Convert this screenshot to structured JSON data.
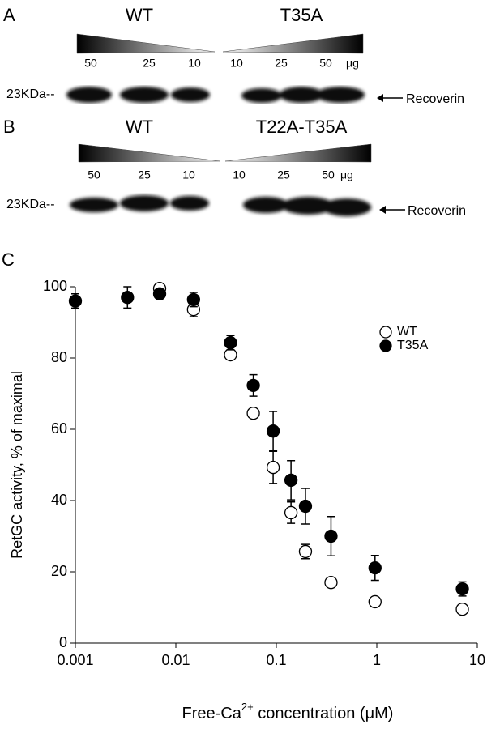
{
  "panel_a": {
    "label": "A",
    "left": "WT",
    "right": "T35A",
    "left_amounts": [
      "50",
      "25",
      "10"
    ],
    "right_amounts": [
      "10",
      "25",
      "50"
    ],
    "unit": "μg",
    "marker": "23KDa--",
    "band": "Recoverin"
  },
  "panel_b": {
    "label": "B",
    "left": "WT",
    "right": "T22A-T35A",
    "left_amounts": [
      "50",
      "25",
      "10"
    ],
    "right_amounts": [
      "10",
      "25",
      "50"
    ],
    "unit": "μg",
    "marker": "23KDa--",
    "band": "Recoverin"
  },
  "chart_data": {
    "type": "scatter",
    "label": "C",
    "xlabel": [
      "Free-Ca",
      "2+",
      " concentration (μM)"
    ],
    "ylabel": "RetGC activity, % of maximal",
    "xscale": "log",
    "xlim": [
      0.001,
      10
    ],
    "xticks": [
      0.001,
      0.01,
      0.1,
      1,
      10
    ],
    "ylim": [
      0,
      100
    ],
    "yticks": [
      0,
      20,
      40,
      60,
      80,
      100
    ],
    "legend": "upper right",
    "series": [
      {
        "name": "WT",
        "color": "#ffffff",
        "x": [
          0.0069,
          0.015,
          0.035,
          0.059,
          0.093,
          0.14,
          0.195,
          0.35,
          0.96,
          7.1
        ],
        "values": [
          99.5,
          93.6,
          80.9,
          64.5,
          49.3,
          36.6,
          25.7,
          17,
          11.6,
          9.5
        ],
        "errors": [
          1,
          2,
          1,
          1,
          4.5,
          3,
          2,
          1,
          1,
          1
        ]
      },
      {
        "name": "T35A",
        "color": "#000000",
        "x": [
          0.001,
          0.0033,
          0.0069,
          0.015,
          0.035,
          0.059,
          0.093,
          0.14,
          0.195,
          0.35,
          0.96,
          7.1
        ],
        "values": [
          96,
          97,
          98,
          96.4,
          84.3,
          72.3,
          59.5,
          45.7,
          38.4,
          30,
          21.1,
          15.2
        ],
        "errors": [
          2,
          3,
          1,
          2,
          2,
          3,
          5.5,
          5.5,
          5,
          5.5,
          3.5,
          2
        ]
      }
    ]
  }
}
